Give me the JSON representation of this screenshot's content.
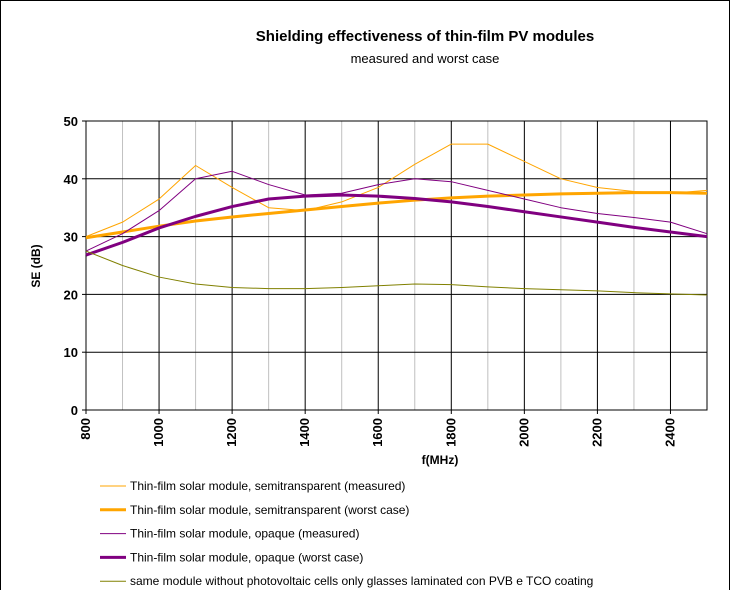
{
  "chart_data": {
    "type": "line",
    "title": "Shielding effectiveness of thin-film PV modules",
    "subtitle": "measured and worst case",
    "x_label": "f(MHz)",
    "y_label": "SE (dB)",
    "x": [
      800,
      900,
      1000,
      1100,
      1200,
      1300,
      1400,
      1500,
      1600,
      1700,
      1800,
      1900,
      2000,
      2100,
      2200,
      2300,
      2400,
      2500
    ],
    "series": [
      {
        "name": "Thin-film solar module, semitransparent (measured)",
        "color": "#ffa500",
        "width": 1,
        "values": [
          30,
          32.5,
          36.5,
          42.3,
          38.5,
          35,
          34.5,
          36,
          38.5,
          42.5,
          46,
          46,
          43,
          40,
          38.5,
          37.8,
          37.5,
          38
        ]
      },
      {
        "name": "Thin-film solar module, semitransparent (worst case)",
        "color": "#ffa500",
        "width": 3,
        "values": [
          29.8,
          30.8,
          31.8,
          32.7,
          33.4,
          34,
          34.6,
          35.2,
          35.8,
          36.3,
          36.7,
          37,
          37.2,
          37.4,
          37.5,
          37.6,
          37.6,
          37.5
        ]
      },
      {
        "name": "Thin-film solar module, opaque (measured)",
        "color": "#800080",
        "width": 1,
        "values": [
          27.5,
          30.5,
          34.5,
          40,
          41.3,
          39,
          37.2,
          37.5,
          39,
          40,
          39.5,
          38,
          36.5,
          35,
          34,
          33.3,
          32.5,
          30.5
        ]
      },
      {
        "name": "Thin-film solar module, opaque (worst case)",
        "color": "#800080",
        "width": 3,
        "values": [
          26.8,
          29,
          31.5,
          33.5,
          35.2,
          36.5,
          37,
          37.2,
          37,
          36.6,
          36,
          35.2,
          34.3,
          33.4,
          32.5,
          31.6,
          30.8,
          30
        ]
      },
      {
        "name": "same module without photovoltaic cells only glasses laminated con PVB e TCO coating",
        "color": "#808000",
        "width": 1,
        "values": [
          27.5,
          25,
          23,
          21.8,
          21.2,
          21,
          21,
          21.2,
          21.5,
          21.8,
          21.7,
          21.3,
          21,
          20.8,
          20.6,
          20.3,
          20.1,
          19.9
        ]
      }
    ],
    "xlim": [
      800,
      2500
    ],
    "ylim": [
      0,
      50
    ],
    "xticks": [
      800,
      1000,
      1200,
      1400,
      1600,
      1800,
      2000,
      2200,
      2400
    ],
    "xminor": [
      900,
      1100,
      1300,
      1500,
      1700,
      1900,
      2100,
      2300
    ],
    "yticks": [
      0,
      10,
      20,
      30,
      40,
      50
    ],
    "grid": true,
    "legend": "bottom"
  }
}
